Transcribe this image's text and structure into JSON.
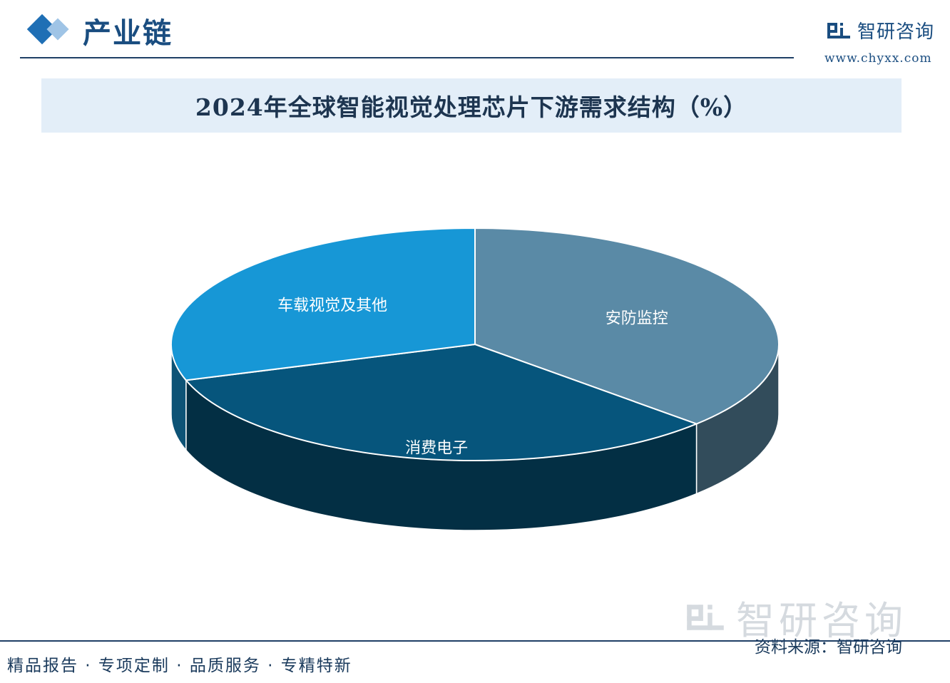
{
  "header": {
    "section_title": "产业链",
    "brand_name": "智研咨询",
    "brand_url": "www.chyxx.com"
  },
  "chart_data": {
    "type": "pie",
    "title": "2024年全球智能视觉处理芯片下游需求结构（%）",
    "slices": [
      {
        "label": "安防监控",
        "value": 37,
        "color": "#5a8aa6"
      },
      {
        "label": "消费电子",
        "value": 33,
        "color": "#06557c"
      },
      {
        "label": "车载视觉及其他",
        "value": 30,
        "color": "#1797d6"
      }
    ]
  },
  "footer": {
    "tagline": "精品报告 · 专项定制 · 品质服务 · 专精特新",
    "source": "资料来源：智研咨询",
    "watermark": "智研咨询"
  }
}
